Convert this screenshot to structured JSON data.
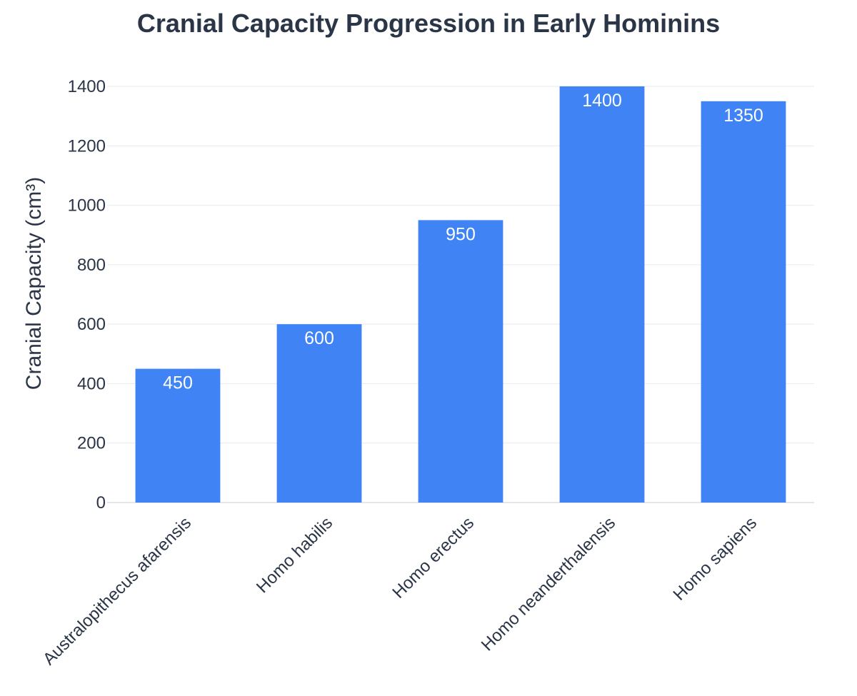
{
  "chart_data": {
    "type": "bar",
    "title": "Cranial Capacity Progression in Early Hominins",
    "xlabel": "",
    "ylabel": "Cranial Capacity (cm³)",
    "categories": [
      "Australopithecus afarensis",
      "Homo habilis",
      "Homo erectus",
      "Homo neanderthalensis",
      "Homo sapiens"
    ],
    "values": [
      450,
      600,
      950,
      1400,
      1350
    ],
    "ylim": [
      0,
      1400
    ],
    "yticks": [
      0,
      200,
      400,
      600,
      800,
      1000,
      1200,
      1400
    ],
    "grid": true,
    "legend": false,
    "bar_color": "#3f83f4",
    "gridline_color": "#e6e9f0"
  }
}
